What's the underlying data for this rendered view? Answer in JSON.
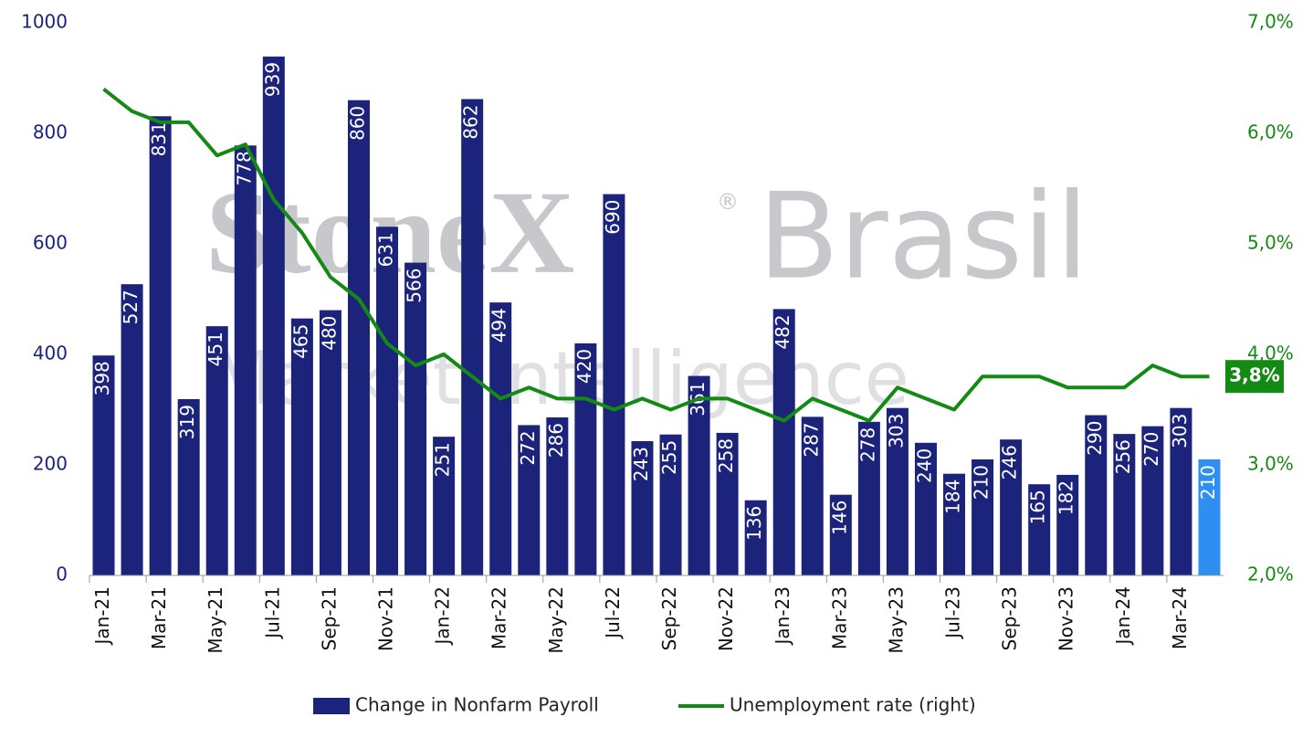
{
  "chart_data": {
    "type": "bar_line",
    "watermark": [
      "StoneX",
      "®",
      "Brasil",
      "Market Intelligence"
    ],
    "categories": [
      "Jan-21",
      null,
      "Mar-21",
      null,
      "May-21",
      null,
      "Jul-21",
      null,
      "Sep-21",
      null,
      "Nov-21",
      null,
      "Jan-22",
      null,
      "Mar-22",
      null,
      "May-22",
      null,
      "Jul-22",
      null,
      "Sep-22",
      null,
      "Nov-22",
      null,
      "Jan-23",
      null,
      "Mar-23",
      null,
      "May-23",
      null,
      "Jul-23",
      null,
      "Sep-23",
      null,
      "Nov-23",
      null,
      "Jan-24",
      null,
      "Mar-24",
      null
    ],
    "series": [
      {
        "name": "Change in Nonfarm Payroll",
        "type": "bar",
        "color": "#1b237b",
        "colors": [
          "#1b237b",
          "#1b237b",
          "#1b237b",
          "#1b237b",
          "#1b237b",
          "#1b237b",
          "#1b237b",
          "#1b237b",
          "#1b237b",
          "#1b237b",
          "#1b237b",
          "#1b237b",
          "#1b237b",
          "#1b237b",
          "#1b237b",
          "#1b237b",
          "#1b237b",
          "#1b237b",
          "#1b237b",
          "#1b237b",
          "#1b237b",
          "#1b237b",
          "#1b237b",
          "#1b237b",
          "#1b237b",
          "#1b237b",
          "#1b237b",
          "#1b237b",
          "#1b237b",
          "#1b237b",
          "#1b237b",
          "#1b237b",
          "#1b237b",
          "#1b237b",
          "#1b237b",
          "#1b237b",
          "#1b237b",
          "#1b237b",
          "#1b237b",
          "#2e8ff0"
        ],
        "values": [
          398,
          527,
          831,
          319,
          451,
          778,
          939,
          465,
          480,
          860,
          631,
          566,
          251,
          862,
          494,
          272,
          286,
          420,
          690,
          243,
          255,
          361,
          258,
          136,
          482,
          287,
          146,
          278,
          303,
          240,
          184,
          210,
          246,
          165,
          182,
          290,
          256,
          270,
          303,
          210
        ]
      },
      {
        "name": "Unemployment rate (right)",
        "type": "line",
        "axis": "y2",
        "color": "#138a13",
        "values": [
          6.4,
          6.2,
          6.1,
          6.1,
          5.8,
          5.9,
          5.4,
          5.1,
          4.7,
          4.5,
          4.1,
          3.9,
          4.0,
          3.8,
          3.6,
          3.7,
          3.6,
          3.6,
          3.5,
          3.6,
          3.5,
          3.6,
          3.6,
          3.5,
          3.4,
          3.6,
          3.5,
          3.4,
          3.7,
          3.6,
          3.5,
          3.8,
          3.8,
          3.8,
          3.7,
          3.7,
          3.7,
          3.9,
          3.8,
          3.8
        ],
        "value_labels": [
          null,
          null,
          null,
          null,
          null,
          null,
          null,
          null,
          null,
          null,
          null,
          null,
          null,
          null,
          null,
          null,
          null,
          null,
          null,
          null,
          null,
          null,
          null,
          null,
          null,
          null,
          null,
          null,
          null,
          null,
          null,
          null,
          null,
          null,
          null,
          null,
          null,
          null,
          null,
          "3,8%"
        ]
      }
    ],
    "ylim": [
      0,
      1000
    ],
    "yticks": [
      0,
      200,
      400,
      600,
      800,
      1000
    ],
    "y2lim": [
      2,
      7
    ],
    "y2ticks": [
      {
        "value": 2,
        "label": "2,0%"
      },
      {
        "value": 3,
        "label": "3,0%"
      },
      {
        "value": 4,
        "label": "4,0%"
      },
      {
        "value": 5,
        "label": "5,0%"
      },
      {
        "value": 6,
        "label": "6,0%"
      },
      {
        "value": 7,
        "label": "7,0%"
      }
    ],
    "legend": "bottom"
  }
}
